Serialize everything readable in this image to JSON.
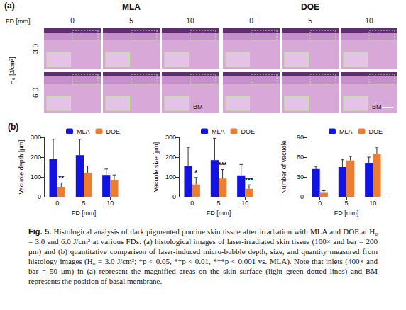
{
  "panel_a": {
    "label": "(a)",
    "groups": [
      "MLA",
      "DOE"
    ],
    "fd_label": "FD [mm]",
    "fd_values": [
      "0",
      "5",
      "10"
    ],
    "h0_label": "H₀ [J/cm²]",
    "h0_values": [
      "3.0",
      "6.0"
    ],
    "annotations": [
      {
        "h0": "6.0",
        "group": "MLA",
        "fd": "10",
        "text": "BM"
      },
      {
        "h0": "6.0",
        "group": "DOE",
        "fd": "10",
        "text": "BM"
      }
    ]
  },
  "panel_b": {
    "label": "(b)"
  },
  "chart_data": [
    {
      "type": "bar",
      "categories": [
        "0",
        "5",
        "10"
      ],
      "x_label": "FD [mm]",
      "y_label": "Vacuole depth [μm]",
      "ylim": [
        0,
        300
      ],
      "yticks": [
        0,
        100,
        200,
        300
      ],
      "legend": "top",
      "grid": false,
      "series": [
        {
          "name": "MLA",
          "color": "#1414e0",
          "values": [
            190,
            210,
            110
          ],
          "errors": [
            100,
            80,
            30
          ]
        },
        {
          "name": "DOE",
          "color": "#ed7d31",
          "values": [
            50,
            120,
            85
          ],
          "errors": [
            20,
            35,
            25
          ],
          "annotations": [
            "**",
            null,
            null
          ]
        }
      ]
    },
    {
      "type": "bar",
      "categories": [
        "0",
        "5",
        "10"
      ],
      "x_label": "FD [mm]",
      "y_label": "Vacuole size [μm]",
      "ylim": [
        0,
        300
      ],
      "yticks": [
        0,
        100,
        200,
        300
      ],
      "legend": "top",
      "grid": false,
      "series": [
        {
          "name": "MLA",
          "color": "#1414e0",
          "values": [
            155,
            185,
            108
          ],
          "errors": [
            95,
            110,
            55
          ]
        },
        {
          "name": "DOE",
          "color": "#ed7d31",
          "values": [
            62,
            92,
            40
          ],
          "errors": [
            35,
            45,
            20
          ],
          "annotations": [
            "*",
            "***",
            "***"
          ]
        }
      ]
    },
    {
      "type": "bar",
      "categories": [
        "0",
        "5",
        "10"
      ],
      "x_label": "FD [mm]",
      "y_label": "Number of vacuole",
      "ylim": [
        0,
        90
      ],
      "yticks": [
        0,
        30,
        60,
        90
      ],
      "legend": "top",
      "grid": false,
      "series": [
        {
          "name": "MLA",
          "color": "#1414e0",
          "values": [
            42,
            45,
            51
          ],
          "errors": [
            4,
            11,
            9
          ]
        },
        {
          "name": "DOE",
          "color": "#ed7d31",
          "values": [
            7,
            55,
            65
          ],
          "errors": [
            2,
            6,
            10
          ]
        }
      ]
    }
  ],
  "caption": {
    "label": "Fig. 5.",
    "text": "Histological analysis of dark pigmented porcine skin tissue after irradiation with MLA and DOE at H₀ = 3.0 and 6.0 J/cm² at various FDs: (a) histological images of laser-irradiated skin tissue (100× and bar = 200 μm) and (b) quantitative comparison of laser-induced micro-bubble depth, size, and quantity measured from histology images (H₀ = 3.0 J/cm²; *p < 0.05, **p < 0.01, ***p < 0.001 vs. MLA). Note that inlets (400× and bar = 50 μm) in (a) represent the magnified areas on the skin surface (light green dotted lines) and BM represents the position of basal membrane."
  }
}
